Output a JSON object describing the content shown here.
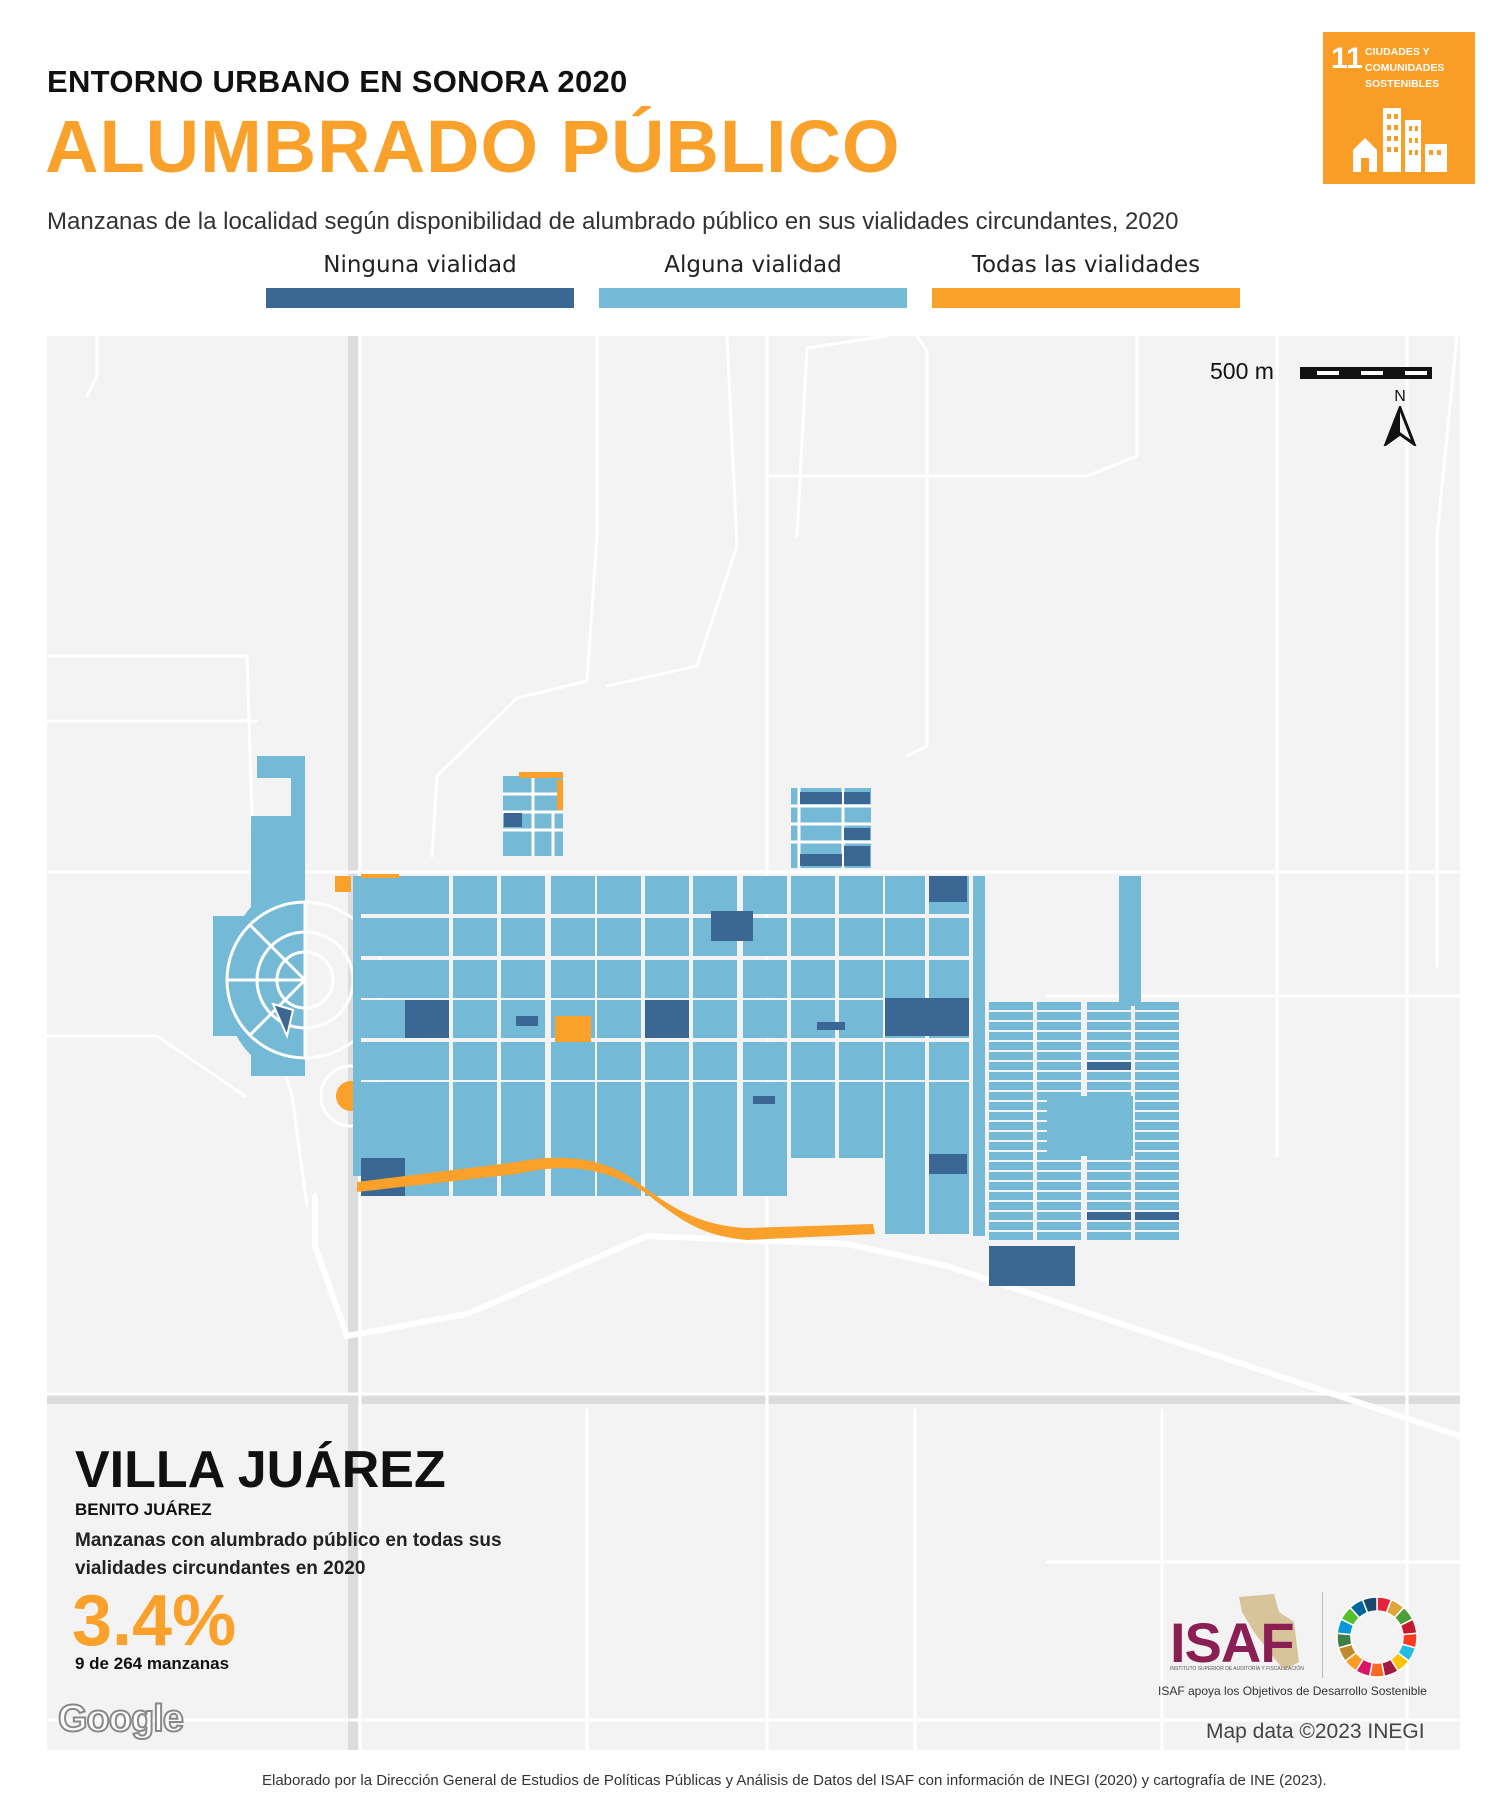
{
  "header": {
    "supertitle": "ENTORNO URBANO EN SONORA 2020",
    "title": "ALUMBRADO PÚBLICO",
    "subtitle": "Manzanas de la localidad según disponibilidad de alumbrado público en sus vialidades circundantes, 2020"
  },
  "legend": [
    {
      "label": "Ninguna vialidad",
      "color": "#3A6794"
    },
    {
      "label": "Alguna vialidad",
      "color": "#74B9D5"
    },
    {
      "label": "Todas las vialidades",
      "color": "#F9A12B"
    }
  ],
  "sdg_badge": {
    "number": "11",
    "label": "CIUDADES Y COMUNIDADES SOSTENIBLES",
    "color": "#F99D26",
    "icon": "city-buildings-icon"
  },
  "map": {
    "scale_label": "500 m",
    "north_label": "N",
    "attribution": "Map data ©2023 INEGI",
    "provider": "Google",
    "colors": {
      "background": "#F3F3F3",
      "road": "#FFFFFF",
      "highway": "#DCDCDC"
    }
  },
  "locality": {
    "name": "VILLA JUÁREZ",
    "municipality": "BENITO JUÁREZ",
    "stat_description": "Manzanas con alumbrado público en todas sus vialidades circundantes en 2020",
    "stat_value": "3.4%",
    "stat_count": "9 de 264 manzanas"
  },
  "isaf": {
    "logo_text": "ISAF",
    "logo_subtext": "INSTITUTO SUPERIOR DE AUDITORÍA Y FISCALIZACIÓN",
    "caption": "ISAF apoya los Objetivos de Desarrollo Sostenible"
  },
  "footer": "Elaborado por la Dirección General de Estudios de Políticas Públicas y Análisis de Datos del ISAF con información de INEGI (2020) y cartografía de INE (2023)."
}
